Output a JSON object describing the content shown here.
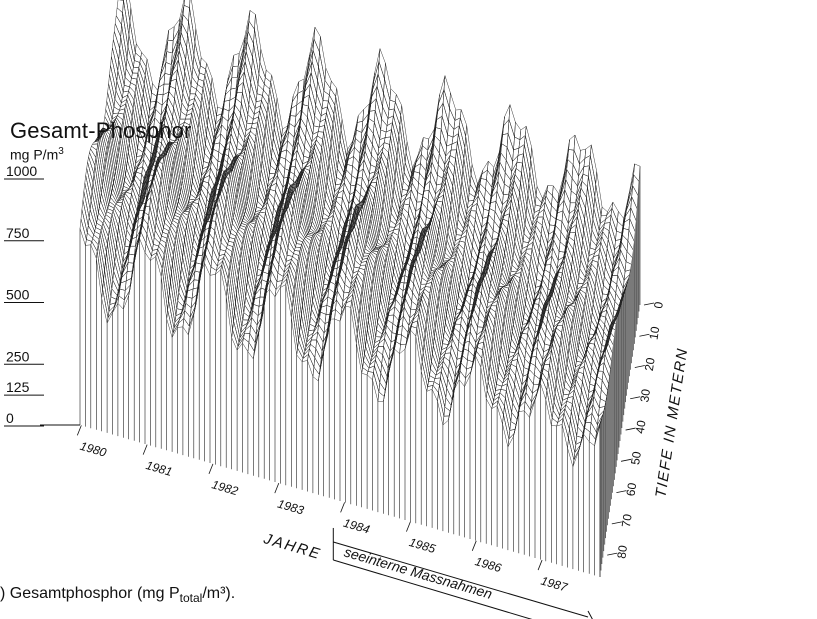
{
  "chart_data": {
    "type": "surface-3d",
    "title": "Gesamt-Phosphor",
    "z_unit_prefix": "mg P/m",
    "z_unit_exp": "3",
    "z_ticks": [
      "1000",
      "750",
      "500",
      "250",
      "125",
      "0"
    ],
    "z_tick_values": [
      1000,
      750,
      500,
      250,
      125,
      0
    ],
    "zlim": [
      0,
      1000
    ],
    "x_label": "JAHRE",
    "x_ticks": [
      "1980",
      "1981",
      "1982",
      "1983",
      "1984",
      "1985",
      "1986",
      "1987"
    ],
    "x_range": [
      1980,
      1987.9
    ],
    "y_label": "TIEFE IN METERN",
    "y_ticks": [
      "0",
      "10",
      "20",
      "30",
      "40",
      "50",
      "60",
      "70",
      "80"
    ],
    "y_range": [
      0,
      87
    ],
    "annotation": "seeinterne Massnahmen",
    "annotation_start_year": 1984,
    "annotation_end_year": 1987.9,
    "caption_prefix": ") Gesamtphosphor (mg P",
    "caption_sub": "total",
    "caption_suffix": "/m³).",
    "line_color": "#222222",
    "fill_color": "#ffffff"
  }
}
